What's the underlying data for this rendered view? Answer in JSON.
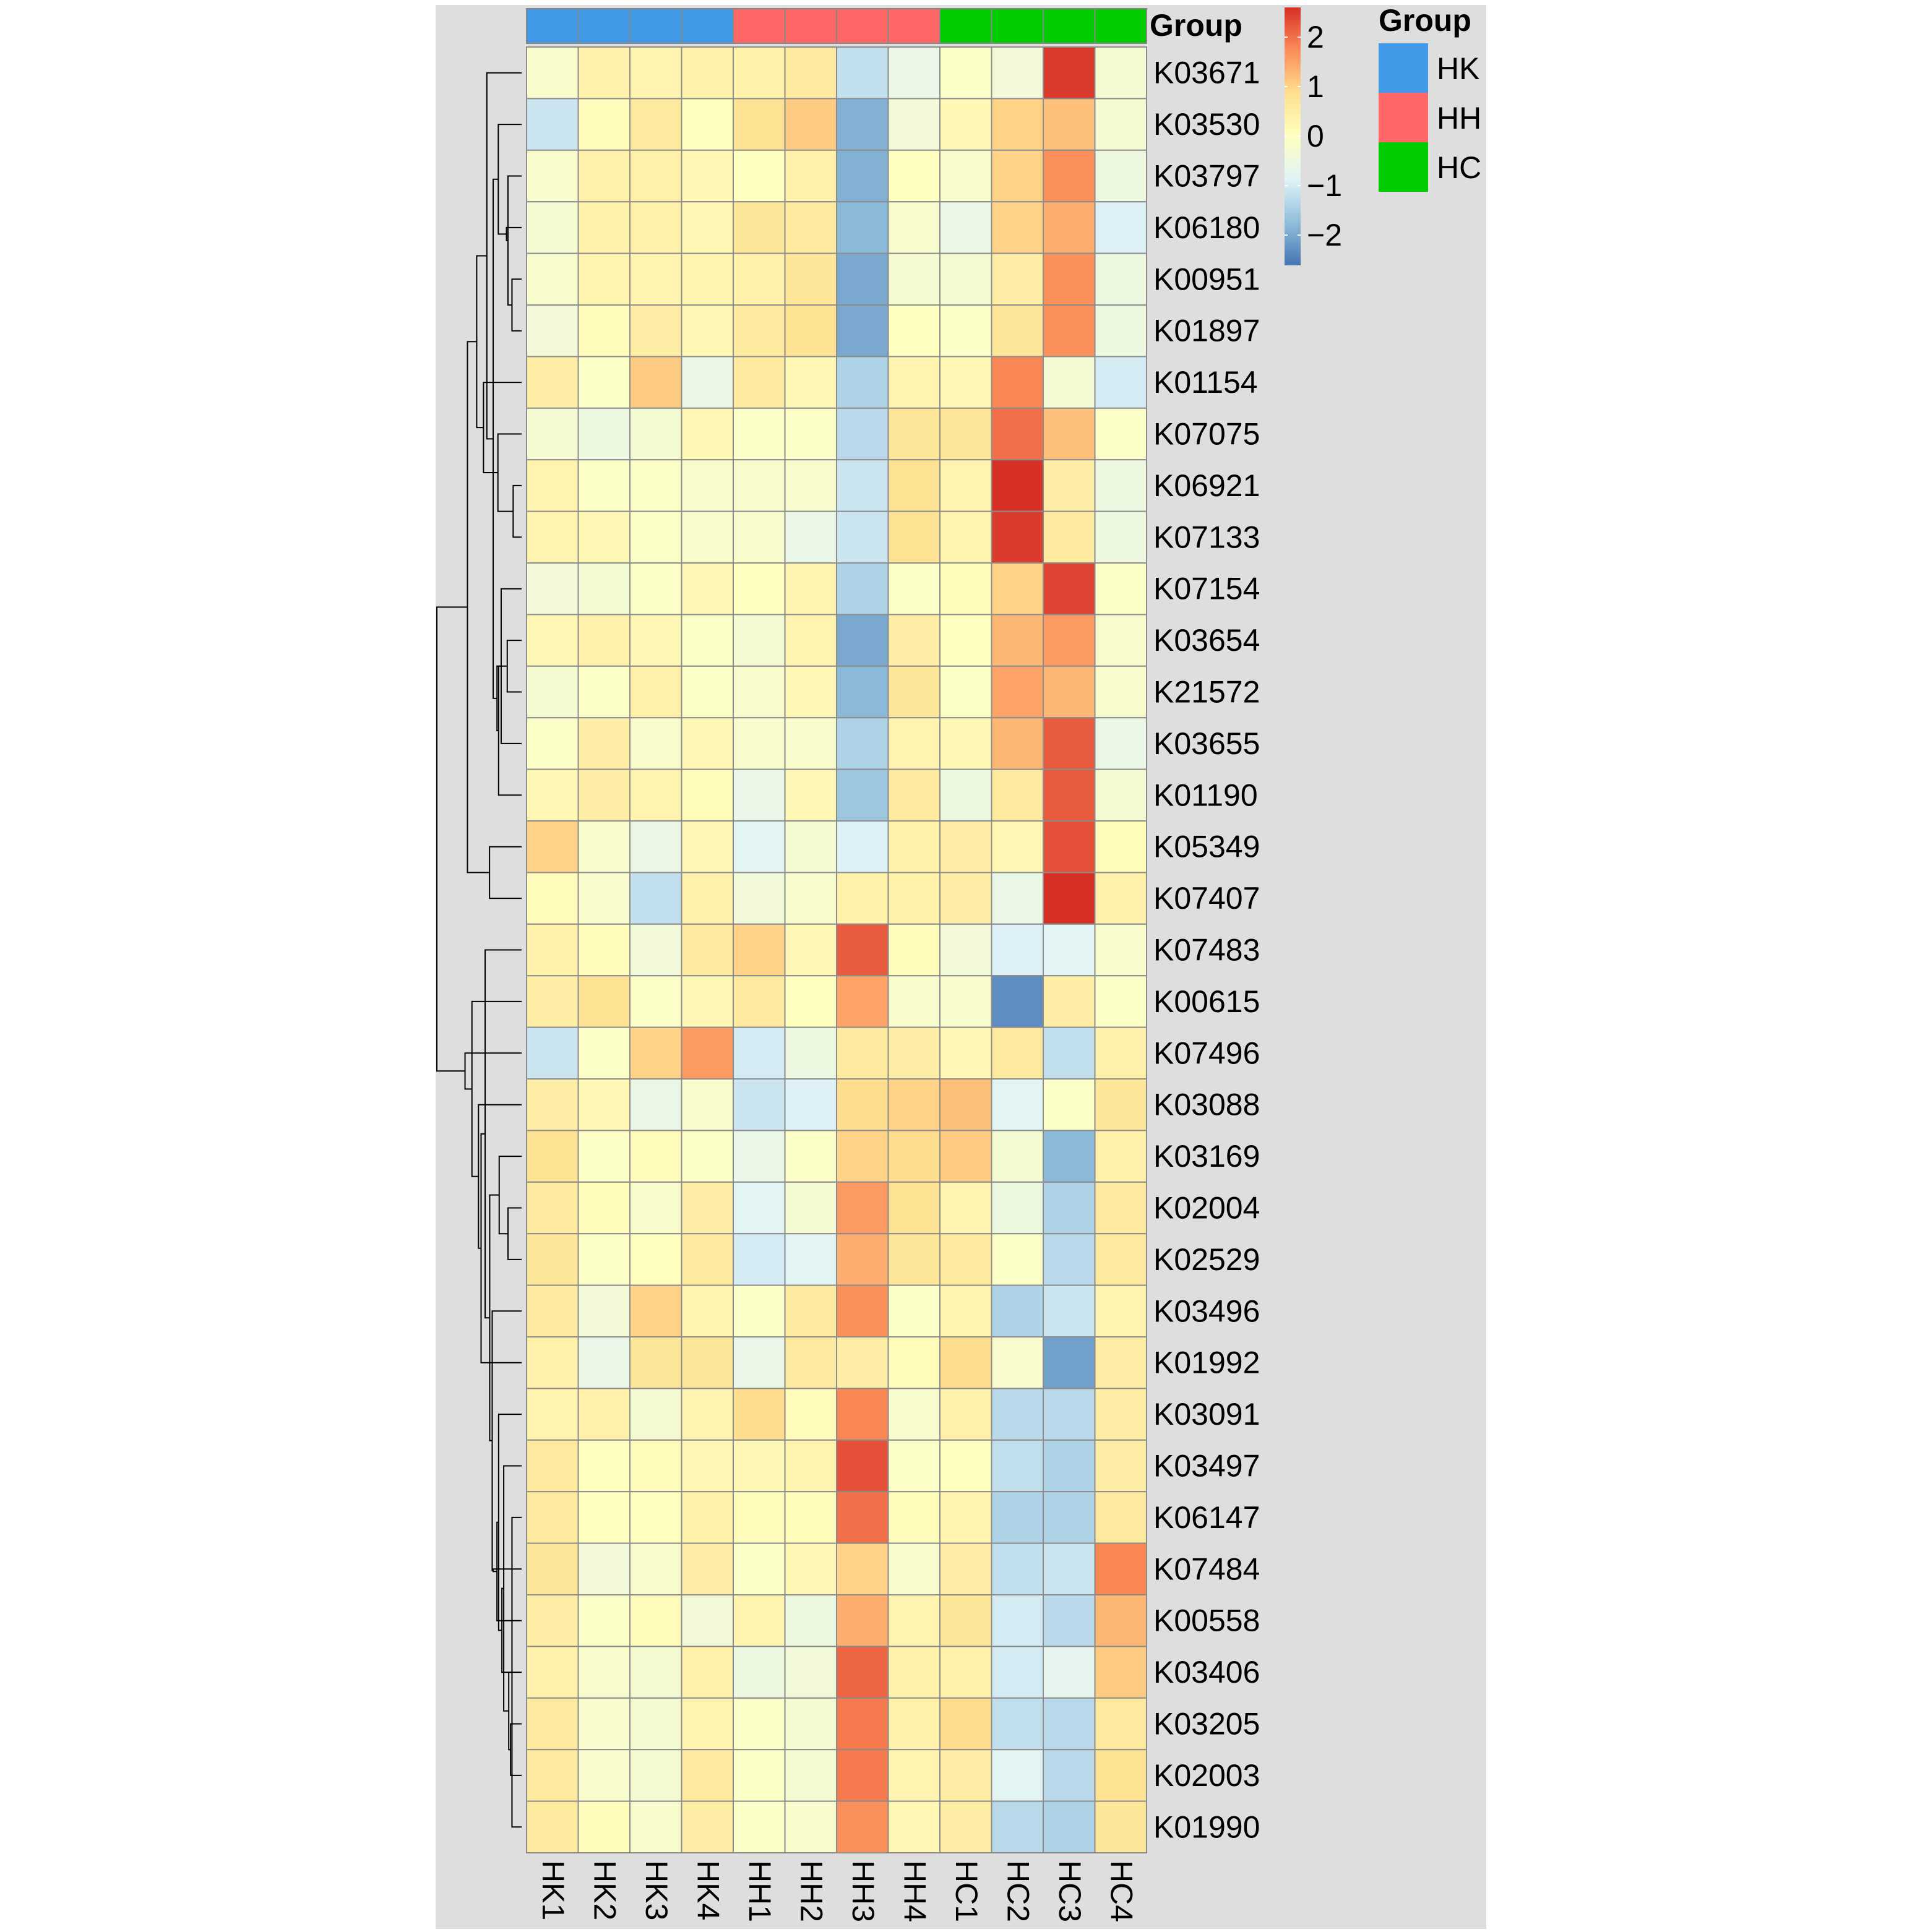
{
  "chart_data": {
    "type": "heatmap",
    "annotation_title": "Group",
    "legend_title": "Group",
    "columns": [
      "HK1",
      "HK2",
      "HK3",
      "HK4",
      "HH1",
      "HH2",
      "HH3",
      "HH4",
      "HC1",
      "HC2",
      "HC3",
      "HC4"
    ],
    "column_groups": [
      "HK",
      "HK",
      "HK",
      "HK",
      "HH",
      "HH",
      "HH",
      "HH",
      "HC",
      "HC",
      "HC",
      "HC"
    ],
    "groups": [
      {
        "name": "HK",
        "color": "#4299E8"
      },
      {
        "name": "HH",
        "color": "#FF6666"
      },
      {
        "name": "HC",
        "color": "#00CC00"
      }
    ],
    "rows": [
      "K03671",
      "K03530",
      "K03797",
      "K06180",
      "K00951",
      "K01897",
      "K01154",
      "K07075",
      "K06921",
      "K07133",
      "K07154",
      "K03654",
      "K21572",
      "K03655",
      "K01190",
      "K05349",
      "K07407",
      "K07483",
      "K00615",
      "K07496",
      "K03088",
      "K03169",
      "K02004",
      "K02529",
      "K03496",
      "K01992",
      "K03091",
      "K03497",
      "K06147",
      "K07484",
      "K00558",
      "K03406",
      "K03205",
      "K02003",
      "K01990"
    ],
    "values": [
      [
        -0.2,
        0.4,
        0.3,
        0.4,
        0.4,
        0.6,
        -1.2,
        -0.6,
        -0.1,
        -0.4,
        2.5,
        -0.3
      ],
      [
        -1.1,
        0.1,
        0.6,
        0.0,
        0.8,
        1.1,
        -1.9,
        -0.4,
        0.2,
        1.0,
        1.2,
        -0.3
      ],
      [
        -0.2,
        0.4,
        0.4,
        0.2,
        0.0,
        0.4,
        -1.9,
        0.0,
        -0.2,
        1.0,
        1.7,
        -0.5
      ],
      [
        -0.3,
        0.4,
        0.4,
        0.2,
        0.7,
        0.6,
        -1.8,
        -0.2,
        -0.6,
        1.0,
        1.4,
        -0.9
      ],
      [
        -0.2,
        0.3,
        0.3,
        0.3,
        0.4,
        0.7,
        -2.0,
        -0.3,
        -0.3,
        0.5,
        1.7,
        -0.5
      ],
      [
        -0.4,
        0.1,
        0.5,
        0.2,
        0.6,
        0.8,
        -2.0,
        0.0,
        -0.1,
        0.7,
        1.7,
        -0.5
      ],
      [
        0.5,
        -0.1,
        1.1,
        -0.6,
        0.6,
        0.2,
        -1.4,
        0.3,
        0.2,
        1.8,
        -0.3,
        -1.0
      ],
      [
        -0.3,
        -0.5,
        -0.3,
        0.2,
        -0.1,
        -0.1,
        -1.3,
        0.7,
        0.7,
        2.0,
        1.2,
        -0.1
      ],
      [
        0.3,
        -0.1,
        -0.1,
        -0.2,
        -0.2,
        -0.2,
        -1.1,
        0.8,
        0.3,
        2.6,
        0.5,
        -0.5
      ],
      [
        0.3,
        0.2,
        -0.1,
        -0.2,
        -0.2,
        -0.6,
        -1.1,
        0.8,
        0.3,
        2.5,
        0.6,
        -0.5
      ],
      [
        -0.4,
        -0.3,
        -0.1,
        0.2,
        0.0,
        0.3,
        -1.4,
        -0.1,
        0.1,
        1.0,
        2.4,
        -0.1
      ],
      [
        0.2,
        0.4,
        0.2,
        -0.1,
        -0.3,
        0.3,
        -2.0,
        0.5,
        0.0,
        1.3,
        1.6,
        -0.2
      ],
      [
        -0.3,
        -0.1,
        0.4,
        -0.1,
        -0.2,
        0.2,
        -1.8,
        0.7,
        -0.1,
        1.5,
        1.3,
        -0.2
      ],
      [
        -0.1,
        0.5,
        -0.2,
        0.2,
        -0.2,
        -0.2,
        -1.4,
        0.3,
        0.2,
        1.3,
        2.2,
        -0.6
      ],
      [
        0.2,
        0.5,
        0.3,
        0.1,
        -0.6,
        0.2,
        -1.6,
        0.6,
        -0.5,
        0.6,
        2.2,
        -0.3
      ],
      [
        1.0,
        -0.2,
        -0.6,
        0.2,
        -0.8,
        -0.3,
        -0.9,
        0.4,
        0.5,
        0.2,
        2.3,
        0.1
      ],
      [
        0.1,
        -0.2,
        -1.2,
        0.4,
        -0.4,
        -0.2,
        0.4,
        0.4,
        0.5,
        -0.6,
        2.6,
        0.4
      ],
      [
        0.4,
        0.1,
        -0.4,
        0.6,
        1.0,
        0.2,
        2.2,
        0.1,
        -0.4,
        -0.9,
        -0.8,
        -0.2
      ],
      [
        0.5,
        0.8,
        -0.1,
        0.2,
        0.6,
        0.0,
        1.5,
        -0.2,
        -0.2,
        -2.3,
        0.5,
        -0.1
      ],
      [
        -1.1,
        -0.1,
        1.0,
        1.6,
        -1.0,
        -0.5,
        0.6,
        0.5,
        0.2,
        0.6,
        -1.2,
        0.4
      ],
      [
        0.5,
        0.2,
        -0.6,
        -0.2,
        -1.1,
        -0.9,
        0.9,
        1.0,
        1.2,
        -0.8,
        -0.1,
        0.7
      ],
      [
        0.8,
        -0.1,
        0.1,
        -0.1,
        -0.6,
        -0.1,
        1.0,
        0.9,
        1.1,
        -0.3,
        -1.8,
        0.4
      ],
      [
        0.6,
        0.1,
        -0.2,
        0.5,
        -0.8,
        -0.3,
        1.6,
        0.8,
        0.3,
        -0.5,
        -1.4,
        0.6
      ],
      [
        0.7,
        -0.1,
        0.0,
        0.6,
        -1.0,
        -0.8,
        1.4,
        0.7,
        0.6,
        -0.1,
        -1.3,
        0.6
      ],
      [
        0.6,
        -0.4,
        1.0,
        0.3,
        -0.1,
        0.6,
        1.7,
        -0.1,
        0.3,
        -1.4,
        -1.1,
        0.3
      ],
      [
        0.4,
        -0.6,
        0.7,
        0.7,
        -0.6,
        0.6,
        0.5,
        0.1,
        0.9,
        -0.2,
        -2.1,
        0.5
      ],
      [
        0.3,
        0.4,
        -0.3,
        0.3,
        0.9,
        0.1,
        1.8,
        -0.2,
        0.4,
        -1.3,
        -1.3,
        0.5
      ],
      [
        0.6,
        0.0,
        0.1,
        0.2,
        0.2,
        0.3,
        2.3,
        -0.1,
        0.0,
        -1.2,
        -1.4,
        0.5
      ],
      [
        0.6,
        0.0,
        0.0,
        0.4,
        0.1,
        0.1,
        2.0,
        0.1,
        0.3,
        -1.4,
        -1.4,
        0.6
      ],
      [
        0.7,
        -0.4,
        -0.2,
        0.5,
        -0.1,
        0.2,
        1.0,
        -0.2,
        0.5,
        -1.2,
        -1.1,
        1.8
      ],
      [
        0.5,
        -0.1,
        0.1,
        -0.4,
        0.3,
        -0.5,
        1.4,
        0.3,
        0.7,
        -1.0,
        -1.3,
        1.3
      ],
      [
        0.4,
        -0.2,
        -0.3,
        0.4,
        -0.5,
        -0.4,
        2.1,
        0.4,
        0.4,
        -1.0,
        -0.7,
        1.1
      ],
      [
        0.6,
        -0.2,
        -0.3,
        0.3,
        -0.1,
        -0.3,
        1.9,
        0.4,
        0.9,
        -1.2,
        -1.3,
        0.6
      ],
      [
        0.6,
        -0.2,
        -0.3,
        0.6,
        -0.1,
        -0.3,
        1.9,
        0.3,
        0.5,
        -0.8,
        -1.3,
        0.8
      ],
      [
        0.6,
        0.1,
        -0.2,
        0.5,
        -0.1,
        -0.2,
        1.7,
        0.2,
        0.5,
        -1.3,
        -1.4,
        0.7
      ]
    ],
    "scale": {
      "min": -2.6,
      "max": 2.6,
      "ticks": [
        2,
        1,
        0,
        -1,
        -2
      ],
      "tick_labels": [
        "2",
        "1",
        "0",
        "−1",
        "−2"
      ],
      "colors": [
        "#4575B4",
        "#91BFDB",
        "#E0F3F8",
        "#FFFFBF",
        "#FEE090",
        "#FC8D59",
        "#D73027"
      ]
    }
  }
}
